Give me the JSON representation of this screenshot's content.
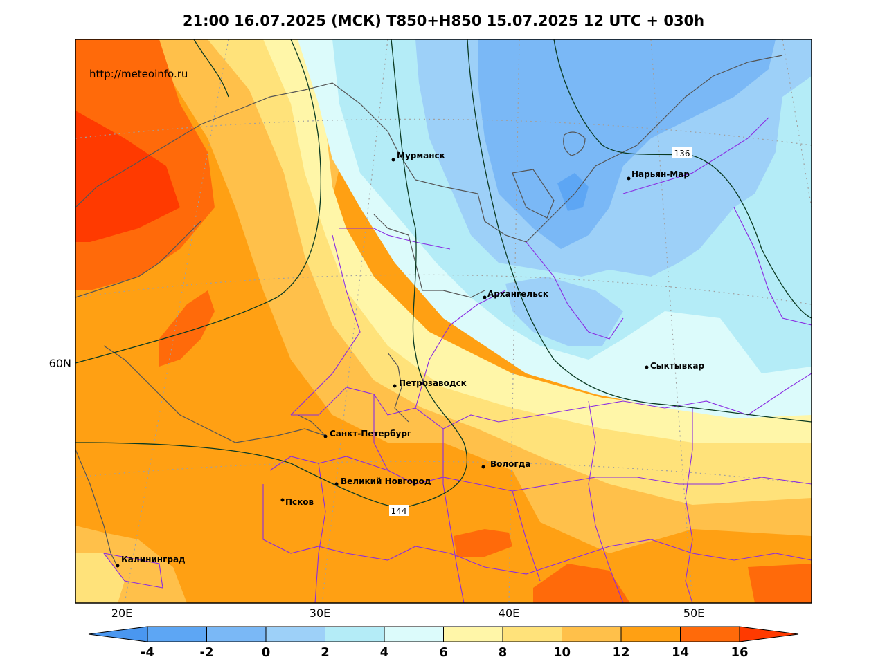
{
  "title": "21:00 16.07.2025 (МСК) T850+H850 15.07.2025 12 UTC + 030h",
  "source_url": "http://meteoinfo.ru",
  "map": {
    "longitude_labels": [
      "20E",
      "30E",
      "40E",
      "50E"
    ],
    "latitude_labels": [
      "60N"
    ],
    "cities": [
      {
        "name": "Мурманск"
      },
      {
        "name": "Нарьян-Мар"
      },
      {
        "name": "Архангельск"
      },
      {
        "name": "Сыктывкар"
      },
      {
        "name": "Петрозаводск"
      },
      {
        "name": "Санкт-Петербург"
      },
      {
        "name": "Вологда"
      },
      {
        "name": "Великий Новгород"
      },
      {
        "name": "Псков"
      },
      {
        "name": "Калининград"
      }
    ],
    "contour_labels": [
      "136",
      "144"
    ]
  },
  "colorbar": {
    "ticks": [
      "-4",
      "-2",
      "0",
      "2",
      "4",
      "6",
      "8",
      "10",
      "12",
      "14",
      "16"
    ],
    "colors": [
      "#4a97f0",
      "#5da6f4",
      "#7ab8f6",
      "#9dd0f8",
      "#b4ecf7",
      "#dcfbfb",
      "#fff6a8",
      "#ffe27a",
      "#ffc04a",
      "#ffa013",
      "#ff6a0a",
      "#ff3a00"
    ]
  }
}
